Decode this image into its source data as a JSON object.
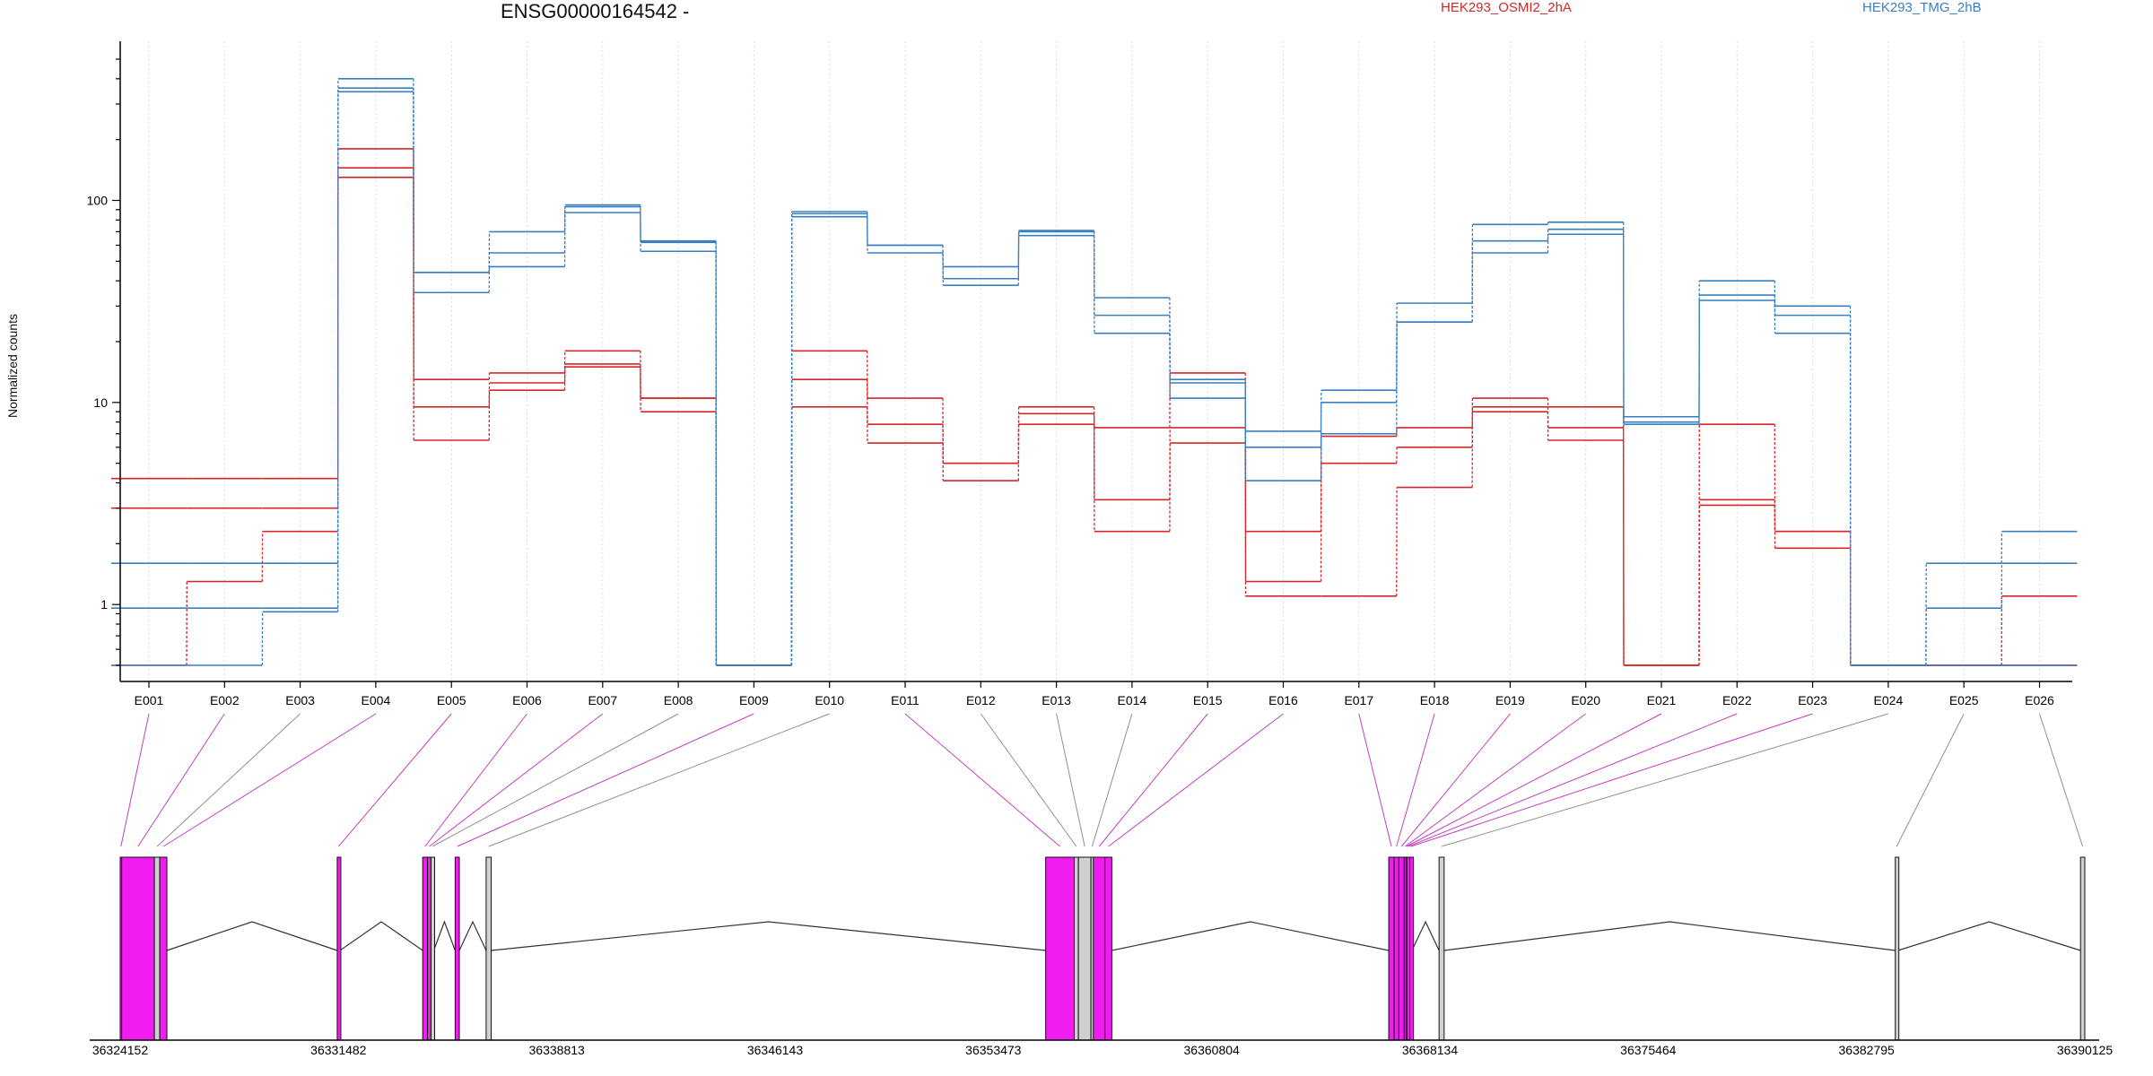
{
  "chart_data": {
    "type": "line",
    "title": "ENSG00000164542 -",
    "ylabel": "Normalized counts",
    "xlabel": "",
    "yscale": "log",
    "ylim": [
      0.5,
      500
    ],
    "yticks": [
      1,
      10,
      100
    ],
    "grid": "vertical dotted lines at each exon bin",
    "legend_placement": "top-right",
    "categories": [
      "E001",
      "E002",
      "E003",
      "E004",
      "E005",
      "E006",
      "E007",
      "E008",
      "E009",
      "E010",
      "E011",
      "E012",
      "E013",
      "E014",
      "E015",
      "E016",
      "E017",
      "E018",
      "E019",
      "E020",
      "E021",
      "E022",
      "E023",
      "E024",
      "E025",
      "E026"
    ],
    "series": [
      {
        "name": "HEK293_OSMI2_2hA",
        "group": "HEK293_OSMI2_2hA",
        "color": "#d62728",
        "values": [
          4.2,
          4.2,
          4.2,
          180,
          13,
          14,
          18,
          10.5,
          0.5,
          18,
          10.5,
          5,
          9.5,
          7.5,
          14,
          2.3,
          6.8,
          7.5,
          10.5,
          9.5,
          0.5,
          7.8,
          2.3,
          0.5,
          0.5,
          0.5
        ]
      },
      {
        "name": "HEK293_OSMI2_2hA",
        "group": "HEK293_OSMI2_2hA",
        "color": "#d62728",
        "values": [
          3,
          3,
          3,
          145,
          9.5,
          12.5,
          15.5,
          10.5,
          0.5,
          13,
          7.8,
          5,
          8.8,
          3.3,
          7.5,
          1.3,
          5,
          6,
          9.5,
          7.5,
          0.5,
          3.3,
          2.3,
          0.5,
          0.5,
          1.1
        ]
      },
      {
        "name": "HEK293_OSMI2_2hA",
        "group": "HEK293_OSMI2_2hA",
        "color": "#d62728",
        "values": [
          0.5,
          1.3,
          2.3,
          130,
          6.5,
          11.5,
          15,
          9,
          0.5,
          9.5,
          6.3,
          4.1,
          7.8,
          2.3,
          6.3,
          1.1,
          1.1,
          3.8,
          9,
          6.5,
          0.5,
          3.1,
          1.9,
          0.5,
          0.5,
          0.5
        ]
      },
      {
        "name": "HEK293_TMG_2hB",
        "group": "HEK293_TMG_2hB",
        "color": "#3a7fc0",
        "values": [
          1.6,
          1.6,
          1.6,
          400,
          44,
          70,
          95,
          63,
          0.5,
          88,
          60,
          47,
          71,
          33,
          13,
          7.2,
          11.5,
          31,
          76,
          78,
          8.5,
          40,
          30,
          0.5,
          1.6,
          2.3
        ]
      },
      {
        "name": "HEK293_TMG_2hB",
        "group": "HEK293_TMG_2hB",
        "color": "#3a7fc0",
        "values": [
          0.96,
          0.96,
          0.96,
          360,
          44,
          55,
          93,
          62,
          0.5,
          86,
          60,
          41,
          70,
          27,
          12.5,
          6,
          10,
          25,
          63,
          72,
          8,
          34,
          27,
          0.5,
          0.96,
          1.6
        ]
      },
      {
        "name": "HEK293_TMG_2hB",
        "group": "HEK293_TMG_2hB",
        "color": "#3a7fc0",
        "values": [
          0.5,
          0.5,
          0.92,
          345,
          35,
          47,
          87,
          56,
          0.5,
          83,
          55,
          38,
          67,
          22,
          10.5,
          4.1,
          7,
          25,
          55,
          68,
          7.8,
          32,
          22,
          0.5,
          0.5,
          0.5
        ]
      }
    ]
  },
  "legend": [
    {
      "label": "HEK293_OSMI2_2hA",
      "color": "#d62728"
    },
    {
      "label": "HEK293_TMG_2hB",
      "color": "#3a7fc0"
    }
  ],
  "gene_model": {
    "genomic_ticks": [
      "36324152",
      "36331482",
      "36338813",
      "36346143",
      "36353473",
      "36360804",
      "36368134",
      "36375464",
      "36382795",
      "36390125"
    ],
    "genomic_tick_values": [
      36324152,
      36331482,
      36338813,
      36346143,
      36353473,
      36360804,
      36368134,
      36375464,
      36382795,
      36390125
    ],
    "exon_bins": [
      {
        "id": "E001",
        "start": 36324152,
        "end": 36324200,
        "significant": true
      },
      {
        "id": "E002",
        "start": 36324200,
        "end": 36325300,
        "significant": true
      },
      {
        "id": "E003",
        "start": 36325300,
        "end": 36325480,
        "significant": false
      },
      {
        "id": "E004",
        "start": 36325480,
        "end": 36325720,
        "significant": true
      },
      {
        "id": "E005",
        "start": 36331440,
        "end": 36331530,
        "significant": true
      },
      {
        "id": "E006",
        "start": 36334310,
        "end": 36334470,
        "significant": true
      },
      {
        "id": "E007",
        "start": 36334470,
        "end": 36334590,
        "significant": true
      },
      {
        "id": "E008",
        "start": 36334590,
        "end": 36334680,
        "significant": false
      },
      {
        "id": "E009",
        "start": 36335400,
        "end": 36335540,
        "significant": true
      },
      {
        "id": "E010",
        "start": 36336440,
        "end": 36336610,
        "significant": false
      },
      {
        "id": "E011",
        "start": 36355230,
        "end": 36356190,
        "significant": true
      },
      {
        "id": "E012",
        "start": 36356190,
        "end": 36356330,
        "significant": false
      },
      {
        "id": "E013",
        "start": 36356330,
        "end": 36356750,
        "significant": false
      },
      {
        "id": "E014",
        "start": 36356750,
        "end": 36356830,
        "significant": false
      },
      {
        "id": "E015",
        "start": 36356830,
        "end": 36357220,
        "significant": true
      },
      {
        "id": "E016",
        "start": 36357220,
        "end": 36357450,
        "significant": true
      },
      {
        "id": "E017",
        "start": 36366750,
        "end": 36366930,
        "significant": true
      },
      {
        "id": "E018",
        "start": 36366930,
        "end": 36367090,
        "significant": true
      },
      {
        "id": "E019",
        "start": 36367090,
        "end": 36367270,
        "significant": true
      },
      {
        "id": "E020",
        "start": 36367270,
        "end": 36367330,
        "significant": true
      },
      {
        "id": "E021",
        "start": 36367330,
        "end": 36367360,
        "significant": true
      },
      {
        "id": "E022",
        "start": 36367360,
        "end": 36367460,
        "significant": true
      },
      {
        "id": "E023",
        "start": 36367460,
        "end": 36367530,
        "significant": true
      },
      {
        "id": "E024",
        "start": 36368440,
        "end": 36368610,
        "significant": false
      },
      {
        "id": "E025",
        "start": 36383760,
        "end": 36383850,
        "significant": false
      },
      {
        "id": "E026",
        "start": 36389980,
        "end": 36390125,
        "significant": false
      }
    ]
  }
}
